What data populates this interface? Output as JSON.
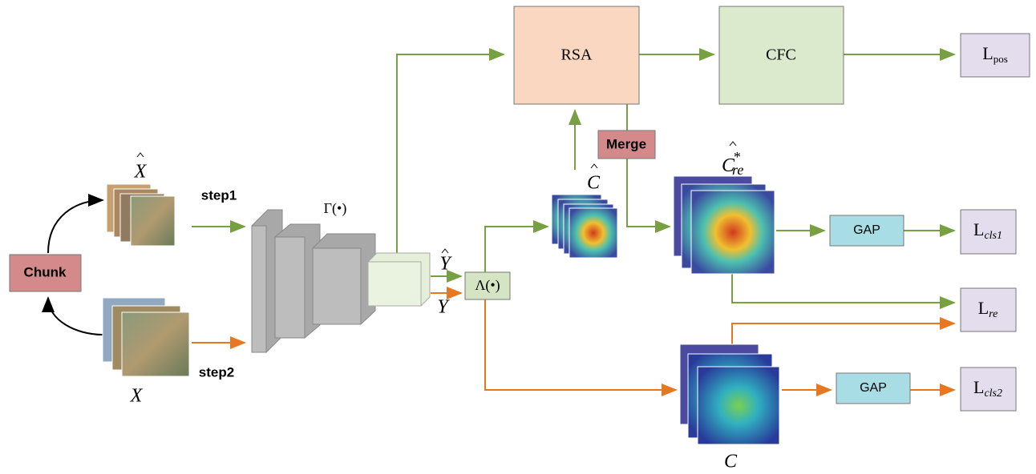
{
  "nodes": {
    "rsa": "RSA",
    "cfc": "CFC",
    "merge": "Merge",
    "chunk": "Chunk",
    "gap1": "GAP",
    "gap2": "GAP",
    "gamma": "Γ(•)",
    "lambda": "Λ(•)"
  },
  "losses": [
    {
      "main": "L",
      "sub": "pos"
    },
    {
      "main": "L",
      "sub": "cls1"
    },
    {
      "main": "L",
      "sub": "re"
    },
    {
      "main": "L",
      "sub": "cls2"
    }
  ],
  "steps": [
    "step1",
    "step2"
  ],
  "symbols": {
    "x_hat": "X",
    "x": "X",
    "y_hat": "Y",
    "y": "Y",
    "c_hat": "C",
    "c_re": {
      "main": "C",
      "sub": "re",
      "sup": "*"
    },
    "c": "C"
  }
}
